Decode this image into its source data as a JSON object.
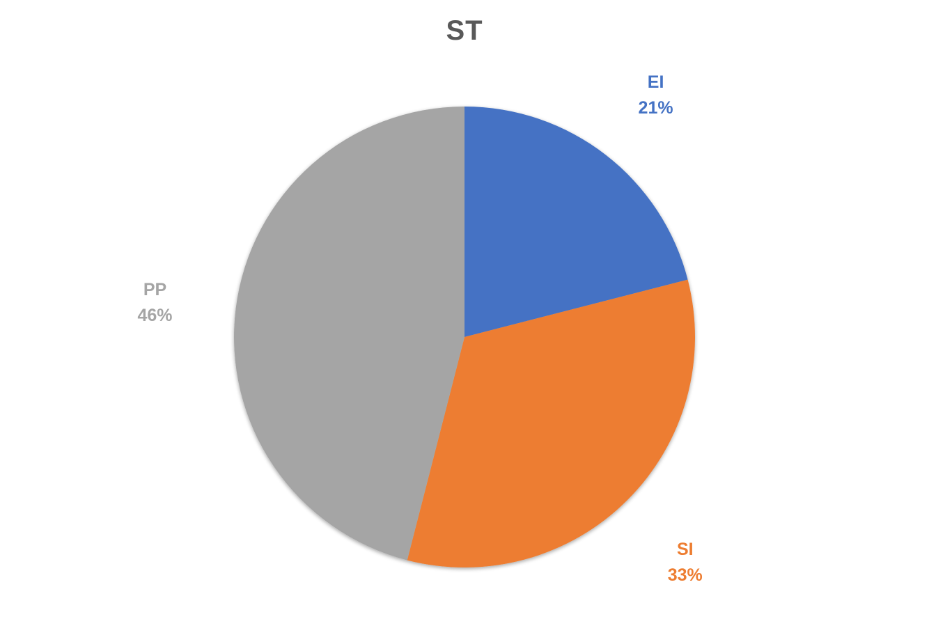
{
  "chart_data": {
    "type": "pie",
    "title": "ST",
    "slices": [
      {
        "label": "EI",
        "value": 21,
        "percent_label": "21%",
        "color": "#4472C4"
      },
      {
        "label": "SI",
        "value": 33,
        "percent_label": "33%",
        "color": "#ED7D31"
      },
      {
        "label": "PP",
        "value": 46,
        "percent_label": "46%",
        "color": "#A5A5A5"
      }
    ],
    "start_angle_deg": 0,
    "direction": "clockwise",
    "data_labels": "outside, category name and percentage"
  }
}
